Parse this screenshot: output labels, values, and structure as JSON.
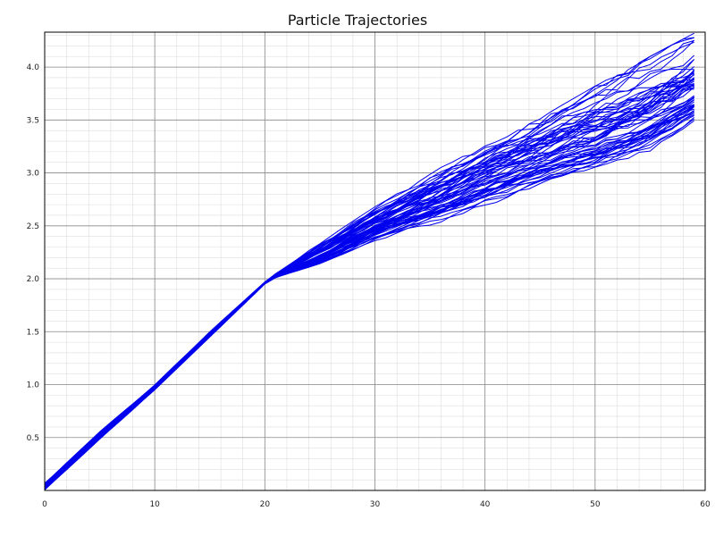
{
  "chart_data": {
    "type": "line",
    "title": "Particle Trajectories",
    "xlabel": "",
    "ylabel": "",
    "xlim": [
      0,
      60
    ],
    "ylim": [
      0.0,
      4.33
    ],
    "x_ticks": [
      "0",
      "10",
      "20",
      "30",
      "40",
      "50",
      "60"
    ],
    "y_ticks": [
      "0.5",
      "1.0",
      "1.5",
      "2.0",
      "2.5",
      "3.0",
      "3.5",
      "4.0"
    ],
    "grid": true,
    "minor_grid": true,
    "line_color": "#0000ee",
    "series_count": 60,
    "x": [
      0,
      1,
      2,
      3,
      4,
      5,
      6,
      7,
      8,
      9,
      10,
      11,
      12,
      13,
      14,
      15,
      16,
      17,
      18,
      19,
      20,
      21,
      22,
      23,
      24,
      25,
      26,
      27,
      28,
      29,
      30,
      31,
      32,
      33,
      34,
      35,
      36,
      37,
      38,
      39,
      40,
      41,
      42,
      43,
      44,
      45,
      46,
      47,
      48,
      49,
      50,
      51,
      52,
      53,
      54,
      55,
      56,
      57,
      58,
      59
    ],
    "envelope": {
      "x": [
        0,
        5,
        10,
        15,
        20,
        21,
        25,
        30,
        35,
        40,
        45,
        50,
        55,
        59
      ],
      "mean": [
        0.03,
        0.52,
        0.97,
        1.47,
        1.96,
        2.03,
        2.22,
        2.5,
        2.72,
        2.94,
        3.13,
        3.31,
        3.52,
        3.75
      ],
      "lower": [
        0.0,
        0.48,
        0.95,
        1.45,
        1.95,
        2.01,
        2.14,
        2.36,
        2.5,
        2.68,
        2.88,
        3.02,
        3.2,
        3.47
      ],
      "upper": [
        0.08,
        0.56,
        1.0,
        1.5,
        1.97,
        2.05,
        2.34,
        2.68,
        3.0,
        3.26,
        3.52,
        3.82,
        4.1,
        4.32
      ]
    }
  }
}
